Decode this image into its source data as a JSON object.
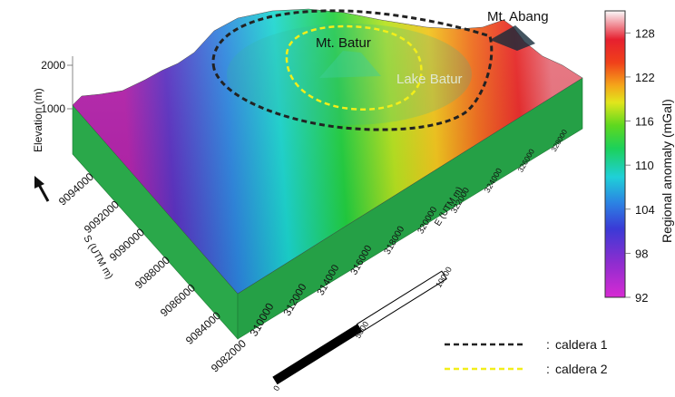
{
  "chart_data": {
    "type": "heatmap",
    "subtype": "3d-terrain-surface",
    "title": "",
    "annotations": {
      "peak_1": "Mt. Batur",
      "lake": "Lake Batur",
      "peak_2": "Mt. Abang"
    },
    "z_axis": {
      "label": "Elevation (m)",
      "ticks": [
        "1000",
        "2000"
      ]
    },
    "y_axis": {
      "label": "S (UTM m)",
      "ticks": [
        "9082000",
        "9084000",
        "9086000",
        "9088000",
        "9090000",
        "9092000",
        "9094000"
      ]
    },
    "x_axis": {
      "label": "E (UTM m)",
      "ticks": [
        "310000",
        "312000",
        "314000",
        "316000",
        "318000",
        "320000",
        "322000",
        "324000",
        "326000",
        "328000"
      ]
    },
    "colorbar": {
      "label": "Regional anomaly (mGal)",
      "ticks": [
        "92",
        "98",
        "104",
        "110",
        "116",
        "122",
        "128"
      ],
      "range": [
        92,
        131
      ],
      "colormap": "rainbow (magenta-blue-cyan-green-yellow-red-pink-white)"
    },
    "scale_bar": {
      "ticks": [
        "0",
        "5000",
        "10000"
      ]
    },
    "legend": {
      "placement": "bottom-right",
      "entries": [
        {
          "label": "caldera 1",
          "color": "#222222",
          "style": "dashed"
        },
        {
          "label": "caldera 2",
          "color": "#f2ee1a",
          "style": "dashed"
        }
      ]
    }
  }
}
